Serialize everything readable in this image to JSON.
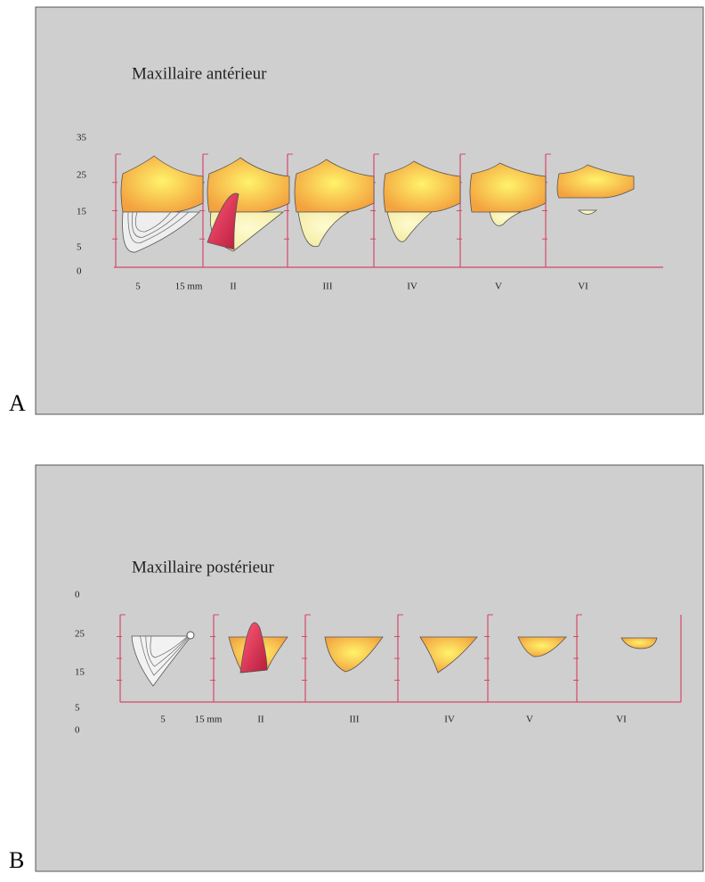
{
  "panels": [
    {
      "label": "A",
      "title": "Maxillaire antérieur",
      "y_labels": [
        "35",
        "25",
        "15",
        "5",
        "0"
      ],
      "x_labels": [
        "5",
        "15 mm",
        "II",
        "III",
        "IV",
        "V",
        "VI"
      ]
    },
    {
      "label": "B",
      "title": "Maxillaire postérieur",
      "y_labels": [
        "0",
        "25",
        "15",
        "5",
        "0"
      ],
      "x_labels": [
        "5",
        "15 mm",
        "II",
        "III",
        "IV",
        "V",
        "VI"
      ]
    }
  ]
}
